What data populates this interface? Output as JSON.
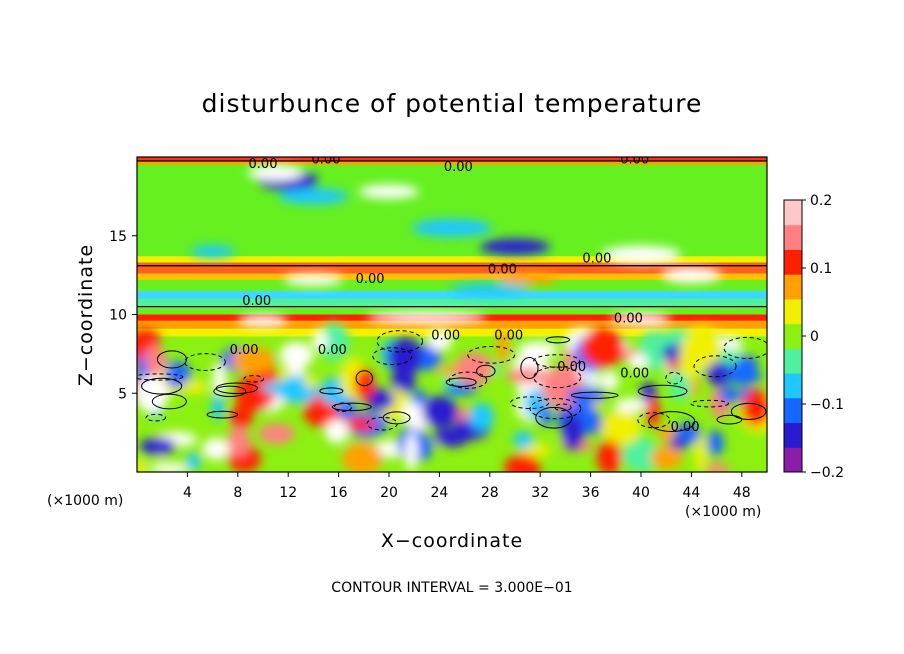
{
  "chart_data": {
    "type": "heatmap",
    "title": "disturbunce of potential temperature",
    "xlabel": "X−coordinate",
    "ylabel": "Z−coordinate",
    "x_unit_left": "(×1000 m)",
    "x_unit_right": "(×1000 m)",
    "footnote": "CONTOUR INTERVAL = 3.000E−01",
    "xlim": [
      0,
      50
    ],
    "ylim": [
      0,
      20
    ],
    "x_ticks": [
      4,
      8,
      12,
      16,
      20,
      24,
      28,
      32,
      36,
      40,
      44,
      48
    ],
    "x_tick_labels": [
      "4",
      "8",
      "12",
      "16",
      "20",
      "24",
      "28",
      "32",
      "36",
      "40",
      "44",
      "48"
    ],
    "y_ticks": [
      5,
      10,
      15
    ],
    "y_tick_labels": [
      "5",
      "10",
      "15"
    ],
    "colorbar": {
      "range": [
        -0.2,
        0.2
      ],
      "tick_values": [
        0.2,
        0.1,
        0,
        -0.1,
        -0.2
      ],
      "tick_labels": [
        "0.2",
        "0.1",
        "0",
        "−0.1",
        "−0.2"
      ],
      "colors": [
        "#8a1ea8",
        "#2a1ad0",
        "#1468ff",
        "#1ec8ff",
        "#4ff0a0",
        "#8cf010",
        "#f0f000",
        "#ffa000",
        "#ff2000",
        "#ff8080",
        "#ffc8c8"
      ]
    },
    "contour_labels": [
      {
        "x": 10,
        "y": 19.3,
        "text": "0.00"
      },
      {
        "x": 15,
        "y": 19.6,
        "text": "0.00"
      },
      {
        "x": 25.5,
        "y": 19.1,
        "text": "0.00"
      },
      {
        "x": 39.5,
        "y": 19.6,
        "text": "0.00"
      },
      {
        "x": 18.5,
        "y": 12.0,
        "text": "0.00"
      },
      {
        "x": 29,
        "y": 12.6,
        "text": "0.00"
      },
      {
        "x": 36.5,
        "y": 13.3,
        "text": "0.00"
      },
      {
        "x": 9.5,
        "y": 10.6,
        "text": "0.00"
      },
      {
        "x": 39,
        "y": 9.5,
        "text": "0.00"
      },
      {
        "x": 24.5,
        "y": 8.4,
        "text": "0.00"
      },
      {
        "x": 29.5,
        "y": 8.4,
        "text": "0.00"
      },
      {
        "x": 15.5,
        "y": 7.5,
        "text": "0.00"
      },
      {
        "x": 8.5,
        "y": 7.5,
        "text": "0.00"
      },
      {
        "x": 34.5,
        "y": 6.4,
        "text": "0.00"
      },
      {
        "x": 39.5,
        "y": 6.0,
        "text": "0.00"
      },
      {
        "x": 43.5,
        "y": 2.6,
        "text": "0.00"
      }
    ]
  }
}
